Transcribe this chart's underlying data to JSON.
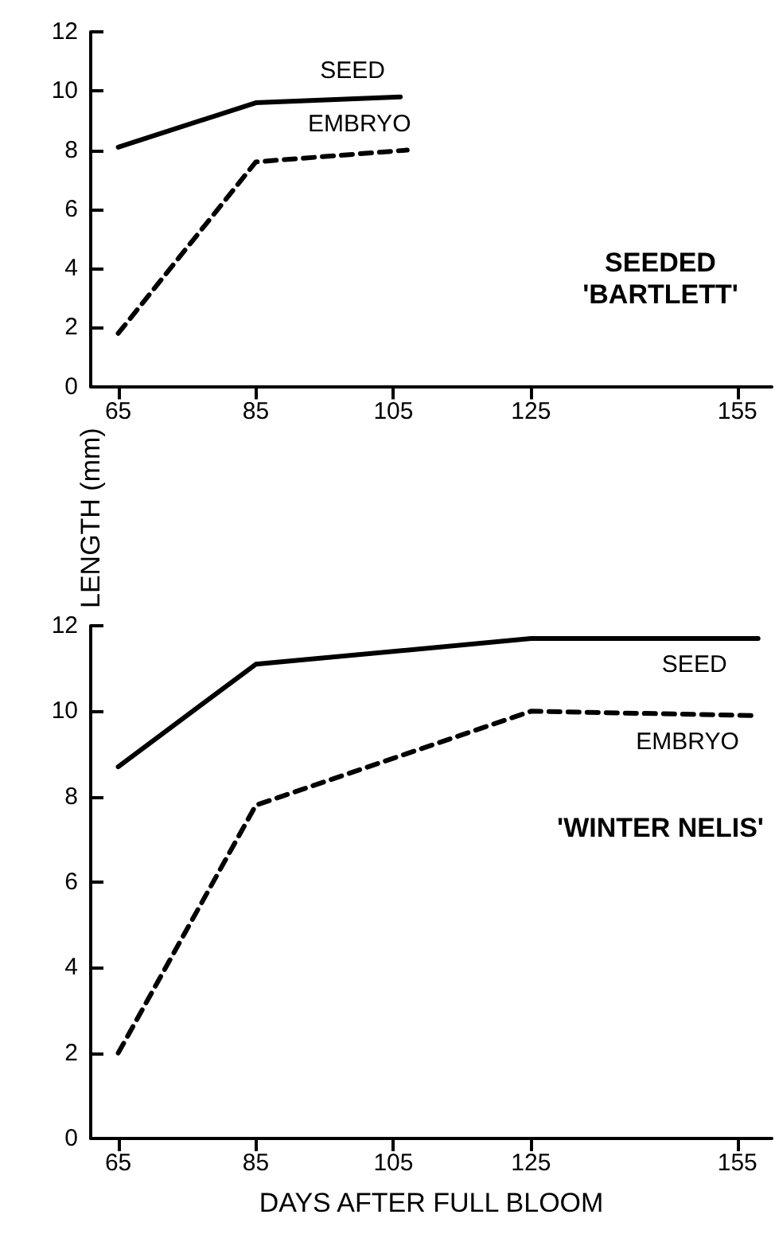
{
  "chart_data": [
    {
      "type": "line",
      "title": "SEEDED\n'BARTLETT'",
      "ylabel": "LENGTH (mm)",
      "xlim": [
        61,
        160
      ],
      "xticks": [
        65,
        85,
        105,
        125,
        155
      ],
      "ylim": [
        0,
        12
      ],
      "yticks": [
        0,
        2,
        4,
        6,
        8,
        10,
        12
      ],
      "grid": false,
      "legend": false,
      "marker": "none",
      "series": [
        {
          "name": "SEED",
          "color": "#000000",
          "line_style": "solid",
          "x": [
            65,
            85,
            106
          ],
          "values": [
            8.1,
            9.6,
            9.8
          ]
        },
        {
          "name": "EMBRYO",
          "color": "#000000",
          "line_style": "dashed",
          "x": [
            65,
            85,
            107
          ],
          "values": [
            1.8,
            7.6,
            8.0
          ]
        }
      ]
    },
    {
      "type": "line",
      "title": "'WINTER NELIS'",
      "xlabel": "DAYS AFTER FULL BLOOM",
      "xlim": [
        61,
        160
      ],
      "xticks": [
        65,
        85,
        105,
        125,
        155
      ],
      "ylim": [
        0,
        12
      ],
      "yticks": [
        0,
        2,
        4,
        6,
        8,
        10,
        12
      ],
      "grid": false,
      "legend": false,
      "marker": "none",
      "series": [
        {
          "name": "SEED",
          "color": "#000000",
          "line_style": "solid",
          "x": [
            65,
            85,
            125,
            158
          ],
          "values": [
            8.7,
            11.1,
            11.7,
            11.7
          ]
        },
        {
          "name": "EMBRYO",
          "color": "#000000",
          "line_style": "dashed",
          "x": [
            65,
            85,
            125,
            157
          ],
          "values": [
            2.0,
            7.8,
            10.0,
            9.9
          ]
        }
      ]
    }
  ]
}
